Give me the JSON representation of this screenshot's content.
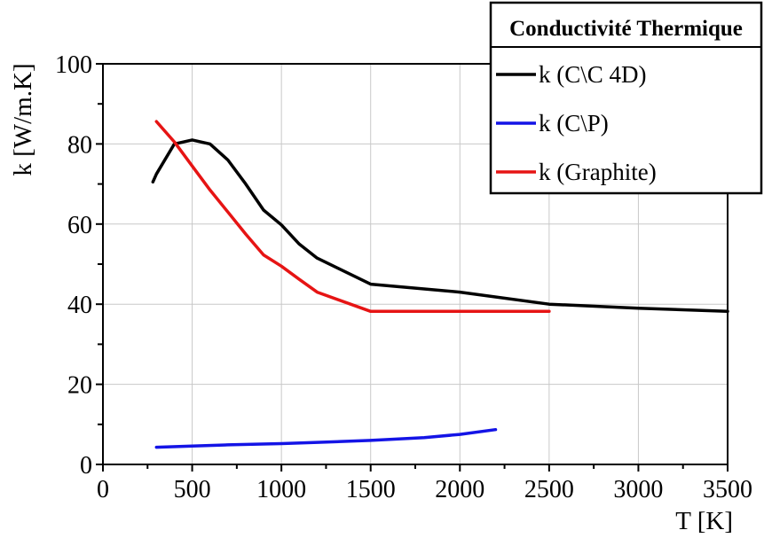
{
  "chart_data": {
    "type": "line",
    "xlabel": "T [K]",
    "ylabel": "k [W/m.K]",
    "xlim": [
      0,
      3500
    ],
    "ylim": [
      0,
      100
    ],
    "xticks": [
      0,
      500,
      1000,
      1500,
      2000,
      2500,
      3000,
      3500
    ],
    "yticks": [
      0,
      20,
      40,
      60,
      80,
      100
    ],
    "grid": true,
    "legend": {
      "title": "Conductivité Thermique",
      "placement": "top-right"
    },
    "series": [
      {
        "name": "k (C\\C 4D)",
        "color": "#000000",
        "x": [
          280,
          300,
          400,
          500,
          600,
          700,
          800,
          900,
          1000,
          1100,
          1200,
          1500,
          2000,
          2500,
          3000,
          3500
        ],
        "y": [
          70.5,
          72.5,
          80,
          81,
          80,
          76,
          70,
          63.5,
          59.8,
          55,
          51.5,
          45,
          43,
          40,
          39,
          38.2
        ]
      },
      {
        "name": "k (C\\P)",
        "color": "#1414e6",
        "x": [
          300,
          500,
          700,
          1000,
          1200,
          1500,
          1800,
          2000,
          2200
        ],
        "y": [
          4.3,
          4.6,
          4.9,
          5.2,
          5.5,
          6.0,
          6.7,
          7.5,
          8.7
        ]
      },
      {
        "name": "k (Graphite)",
        "color": "#e61414",
        "x": [
          300,
          400,
          500,
          600,
          700,
          800,
          900,
          1000,
          1100,
          1200,
          1500,
          2000,
          2500
        ],
        "y": [
          85.6,
          80.5,
          74.5,
          68.5,
          63,
          57.5,
          52.3,
          49.5,
          46.2,
          43,
          38.2,
          38.2,
          38.2
        ]
      }
    ]
  }
}
